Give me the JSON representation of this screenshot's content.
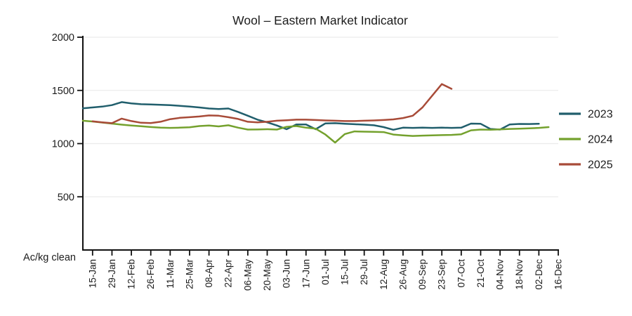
{
  "chart_data": {
    "type": "line",
    "title": "Wool – Eastern Market Indicator",
    "ylabel": "Ac/kg clean",
    "ylim": [
      0,
      2000
    ],
    "y_ticks": [
      500,
      1000,
      1500,
      2000
    ],
    "grid": "horizontal",
    "legend_position": "right",
    "x_tick_labels": [
      "15-Jan",
      "29-Jan",
      "12-Feb",
      "26-Feb",
      "11-Mar",
      "25-Mar",
      "08-Apr",
      "22-Apr",
      "06-May",
      "20-May",
      "03-Jun",
      "17-Jun",
      "01-Jul",
      "15-Jul",
      "29-Jul",
      "12-Aug",
      "26-Aug",
      "09-Sep",
      "23-Sep",
      "07-Oct",
      "21-Oct",
      "04-Nov",
      "18-Nov",
      "02-Dec",
      "16-Dec"
    ],
    "x_note": "weekly data points; axis ticks every second week (week 1 = 15-Jan)",
    "series": [
      {
        "name": "2023",
        "color": "#205e6c",
        "start_week": 0,
        "values": [
          1332,
          1340,
          1348,
          1362,
          1390,
          1378,
          1370,
          1368,
          1365,
          1362,
          1355,
          1348,
          1340,
          1330,
          1325,
          1330,
          1298,
          1262,
          1225,
          1200,
          1170,
          1135,
          1180,
          1180,
          1135,
          1190,
          1192,
          1186,
          1182,
          1178,
          1172,
          1155,
          1130,
          1150,
          1148,
          1150,
          1148,
          1150,
          1148,
          1150,
          1188,
          1186,
          1138,
          1132,
          1180,
          1185,
          1184,
          1186
        ]
      },
      {
        "name": "2024",
        "color": "#74a12d",
        "start_week": 0,
        "values": [
          1215,
          1208,
          1198,
          1188,
          1178,
          1170,
          1163,
          1156,
          1150,
          1148,
          1150,
          1153,
          1165,
          1170,
          1162,
          1172,
          1150,
          1132,
          1133,
          1135,
          1132,
          1158,
          1165,
          1150,
          1140,
          1085,
          1010,
          1090,
          1115,
          1112,
          1110,
          1108,
          1085,
          1078,
          1072,
          1075,
          1078,
          1080,
          1082,
          1088,
          1125,
          1132,
          1130,
          1134,
          1138,
          1140,
          1143,
          1148,
          1155
        ]
      },
      {
        "name": "2025",
        "color": "#a84b38",
        "start_week": 1,
        "values": [
          1210,
          1200,
          1192,
          1235,
          1212,
          1196,
          1193,
          1205,
          1230,
          1242,
          1248,
          1255,
          1265,
          1262,
          1248,
          1232,
          1205,
          1200,
          1205,
          1215,
          1220,
          1225,
          1225,
          1222,
          1218,
          1215,
          1212,
          1212,
          1215,
          1218,
          1222,
          1228,
          1240,
          1262,
          1340,
          1450,
          1560,
          1515
        ]
      }
    ]
  },
  "colors": {
    "axis": "#111111",
    "gridline": "#ebebeb",
    "text": "#1c1c1c",
    "background": "#ffffff"
  }
}
